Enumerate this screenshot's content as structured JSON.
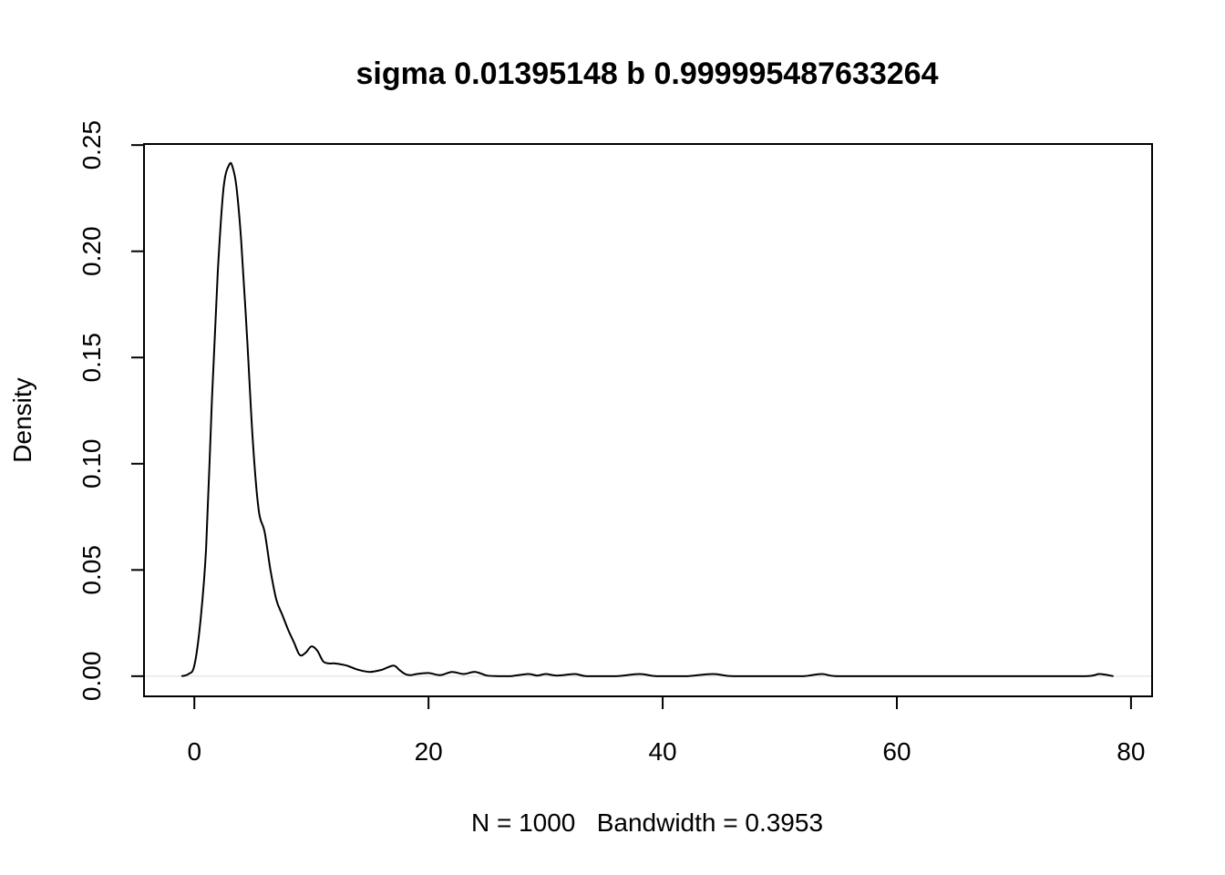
{
  "chart_data": {
    "type": "line",
    "title": "sigma 0.01395148 b 0.999995487633264",
    "xlabel": "N = 1000   Bandwidth = 0.3953",
    "ylabel": "Density",
    "xlim": [
      -4.3,
      81.8
    ],
    "ylim": [
      -0.0095,
      0.2505
    ],
    "xticks": [
      0,
      20,
      40,
      60,
      80
    ],
    "yticks": [
      0.0,
      0.05,
      0.1,
      0.15,
      0.2,
      0.25
    ],
    "xtick_labels": [
      "0",
      "20",
      "40",
      "60",
      "80"
    ],
    "ytick_labels": [
      "0.00",
      "0.05",
      "0.10",
      "0.15",
      "0.20",
      "0.25"
    ],
    "grid": false,
    "legend": "none",
    "series": [
      {
        "x": [
          -1.1,
          -0.5,
          0.0,
          0.5,
          1.0,
          1.5,
          2.0,
          2.5,
          3.0,
          3.3,
          3.6,
          4.0,
          4.5,
          5.0,
          5.5,
          6.0,
          6.5,
          7.0,
          7.5,
          8.0,
          8.5,
          9.0,
          9.5,
          10.0,
          10.5,
          11.0,
          11.5,
          12.0,
          13.0,
          14.0,
          15.0,
          16.0,
          17.0,
          17.5,
          18.0,
          18.5,
          19.0,
          20.0,
          21.0,
          22.0,
          23.0,
          24.0,
          25.0,
          26.0,
          27.0,
          28.5,
          29.3,
          30.0,
          31.0,
          32.5,
          33.5,
          36.0,
          38.0,
          39.5,
          42.0,
          44.3,
          46.0,
          50.0,
          52.0,
          53.6,
          55.0,
          60.0,
          70.0,
          76.0,
          77.3,
          78.5
        ],
        "y": [
          0.0,
          0.001,
          0.005,
          0.025,
          0.06,
          0.13,
          0.19,
          0.23,
          0.241,
          0.239,
          0.23,
          0.205,
          0.16,
          0.11,
          0.078,
          0.068,
          0.05,
          0.036,
          0.029,
          0.022,
          0.016,
          0.01,
          0.011,
          0.014,
          0.012,
          0.007,
          0.006,
          0.006,
          0.005,
          0.003,
          0.002,
          0.003,
          0.005,
          0.003,
          0.001,
          0.0005,
          0.001,
          0.0015,
          0.0005,
          0.002,
          0.001,
          0.002,
          0.0003,
          0.0,
          0.0,
          0.001,
          0.0003,
          0.001,
          0.0003,
          0.001,
          0.0,
          0.0,
          0.001,
          0.0,
          0.0,
          0.001,
          0.0,
          0.0,
          0.0,
          0.001,
          0.0,
          0.0,
          0.0,
          0.0,
          0.001,
          0.0
        ]
      }
    ]
  }
}
